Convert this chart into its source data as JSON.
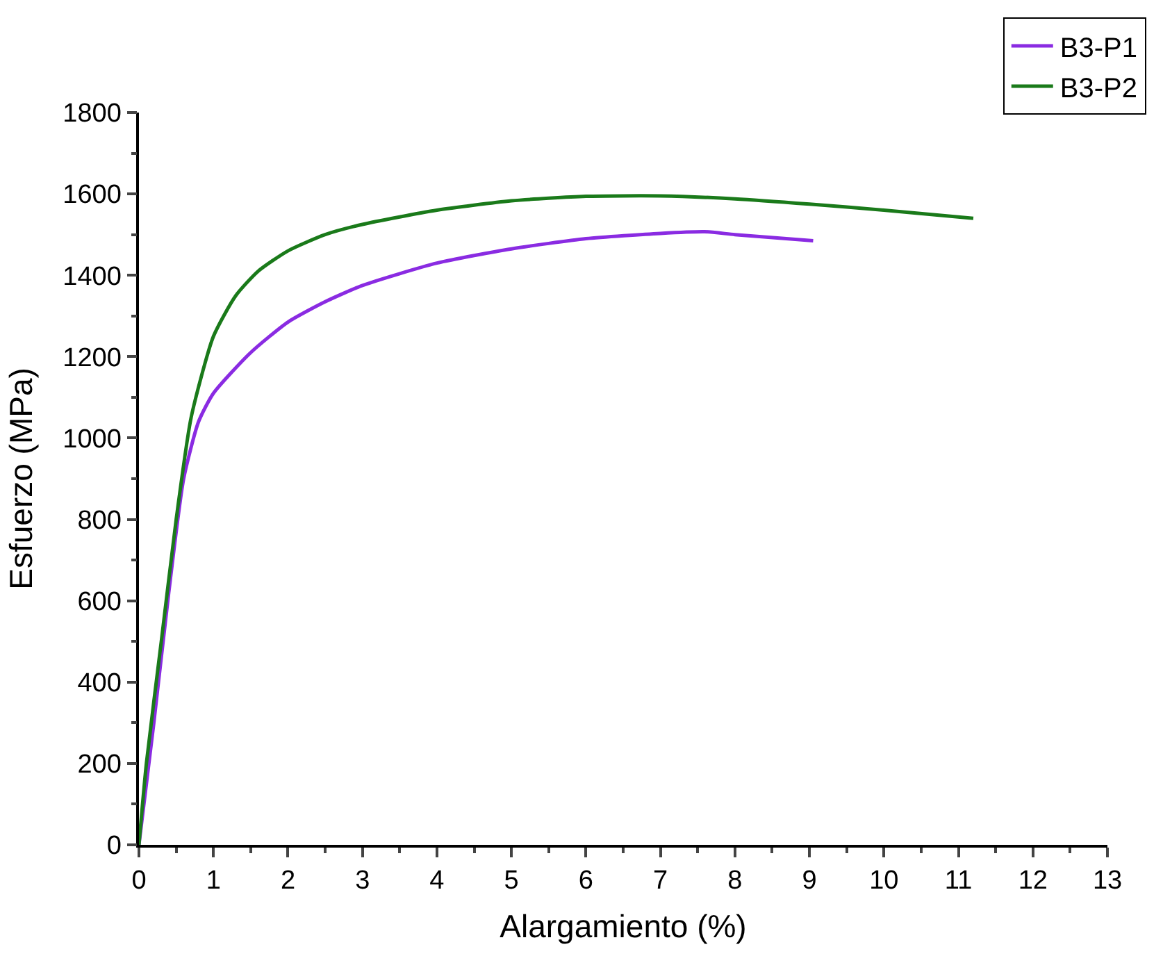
{
  "chart_data": {
    "type": "line",
    "xlabel": "Alargamiento (%)",
    "ylabel": "Esfuerzo (MPa)",
    "xlim": [
      0,
      13
    ],
    "xticks": [
      0,
      1,
      2,
      3,
      4,
      5,
      6,
      7,
      8,
      9,
      10,
      11,
      12,
      13
    ],
    "ylim": [
      0,
      1800
    ],
    "yticks": [
      0,
      200,
      400,
      600,
      800,
      1000,
      1200,
      1400,
      1600,
      1800
    ],
    "legend": "top right",
    "marker": "none",
    "line_style": "solid",
    "series": [
      {
        "name": "B3-P1",
        "color": "#8a2be2",
        "x": [
          0,
          0.2,
          0.4,
          0.6,
          0.8,
          1.0,
          1.5,
          2,
          2.5,
          3,
          4,
          5,
          6,
          7,
          7.6,
          8,
          9.05
        ],
        "values": [
          0,
          300,
          620,
          900,
          1040,
          1110,
          1210,
          1285,
          1335,
          1375,
          1430,
          1465,
          1490,
          1503,
          1507,
          1500,
          1485
        ]
      },
      {
        "name": "B3-P2",
        "color": "#1a7a1a",
        "x": [
          0,
          0.1,
          0.3,
          0.5,
          0.7,
          1.0,
          1.3,
          1.6,
          2,
          2.5,
          3,
          4,
          5,
          6,
          7,
          8,
          9,
          10,
          11.2
        ],
        "values": [
          0,
          200,
          500,
          800,
          1050,
          1250,
          1350,
          1410,
          1460,
          1500,
          1525,
          1560,
          1583,
          1594,
          1595,
          1588,
          1575,
          1560,
          1540
        ]
      }
    ]
  }
}
